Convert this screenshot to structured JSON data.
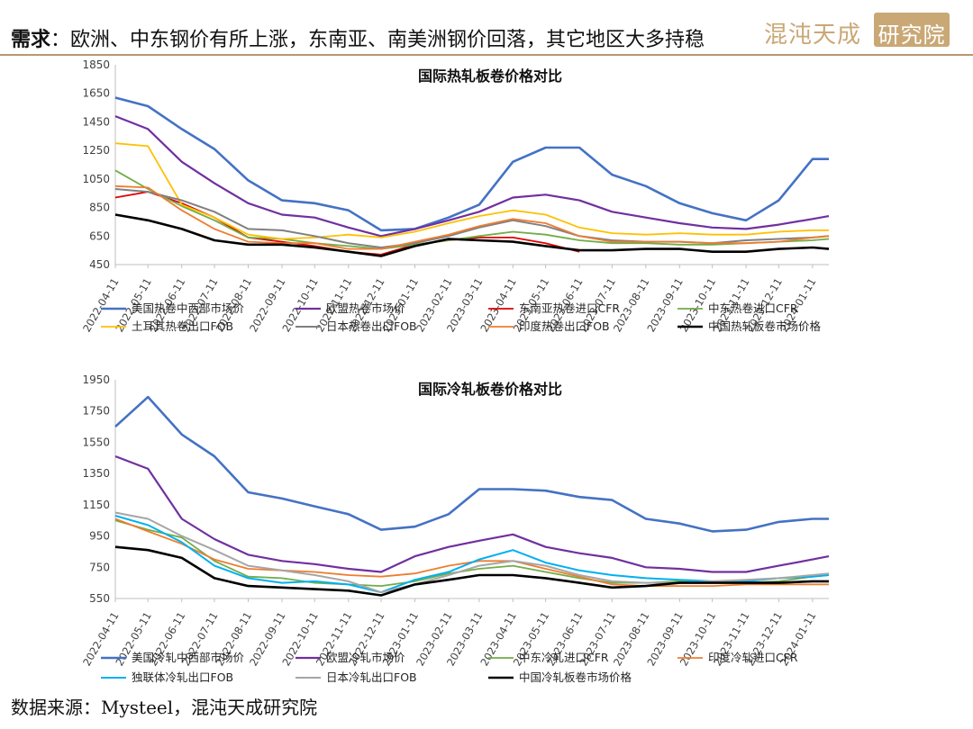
{
  "header": {
    "headline_bold": "需求",
    "headline_rest": "：欧洲、中东钢价有所上涨，东南亚、南美洲钢价回落，其它地区大多持稳",
    "logo_brush": "混沌天成",
    "logo_seal": "研究院"
  },
  "footer": {
    "source": "数据来源：Mysteel，混沌天成研究院"
  },
  "chart_data": [
    {
      "type": "line",
      "title": "国际热轧板卷价格对比",
      "ylim": [
        450,
        1850
      ],
      "yticks": [
        "450",
        "650",
        "850",
        "1050",
        "1250",
        "1450",
        "1650",
        "1850"
      ],
      "xticks": [
        "2022-04-11",
        "2022-05-11",
        "2022-06-11",
        "2022-07-11",
        "2022-08-11",
        "2022-09-11",
        "2022-10-11",
        "2022-11-11",
        "2022-12-11",
        "2023-01-11",
        "2023-02-11",
        "2023-03-11",
        "2023-04-11",
        "2023-05-11",
        "2023-06-11",
        "2023-07-11",
        "2023-08-11",
        "2023-09-11",
        "2023-10-11",
        "2023-11-11",
        "2023-12-11",
        "2024-01-11"
      ],
      "x": [
        "2022-04-11",
        "2022-05-11",
        "2022-06-11",
        "2022-07-11",
        "2022-08-11",
        "2022-09-11",
        "2022-10-11",
        "2022-11-11",
        "2022-12-11",
        "2023-01-11",
        "2023-02-11",
        "2023-03-11",
        "2023-04-11",
        "2023-05-11",
        "2023-06-11",
        "2023-07-11",
        "2023-08-11",
        "2023-09-11",
        "2023-10-11",
        "2023-11-11",
        "2023-12-11",
        "2024-01-11",
        "2024-01-26"
      ],
      "legend_position": "bottom",
      "grid": false,
      "series": [
        {
          "name": "美国热卷中西部市场价",
          "color": "#4472c4",
          "width": 2.6,
          "values": [
            1620,
            1560,
            1400,
            1260,
            1040,
            900,
            880,
            830,
            690,
            700,
            780,
            870,
            1170,
            1270,
            1270,
            1080,
            1000,
            880,
            810,
            760,
            900,
            1190,
            1190
          ]
        },
        {
          "name": "欧盟热卷市场价",
          "color": "#7030a0",
          "width": 2.2,
          "values": [
            1490,
            1400,
            1170,
            1020,
            880,
            800,
            780,
            710,
            650,
            700,
            760,
            820,
            920,
            940,
            900,
            820,
            780,
            740,
            710,
            700,
            730,
            770,
            790
          ]
        },
        {
          "name": "东南亚热卷进口CFR",
          "color": "#e00000",
          "width": 1.8,
          "values": [
            920,
            960,
            880,
            780,
            640,
            610,
            580,
            540,
            520,
            590,
            620,
            640,
            640,
            600,
            540,
            null,
            null,
            null,
            null,
            null,
            null,
            null,
            null
          ]
        },
        {
          "name": "中东热卷进口CFR",
          "color": "#70ad47",
          "width": 1.8,
          "values": [
            1110,
            980,
            860,
            760,
            640,
            630,
            600,
            580,
            560,
            590,
            620,
            650,
            680,
            660,
            620,
            600,
            600,
            590,
            590,
            600,
            610,
            620,
            630
          ]
        },
        {
          "name": "土耳其热卷出口FOB",
          "color": "#ffc000",
          "width": 1.8,
          "values": [
            1300,
            1280,
            870,
            780,
            660,
            630,
            640,
            660,
            640,
            680,
            740,
            790,
            830,
            800,
            710,
            670,
            660,
            670,
            660,
            660,
            680,
            690,
            690
          ]
        },
        {
          "name": "日本热卷出口FOB",
          "color": "#808080",
          "width": 2.0,
          "values": [
            980,
            960,
            900,
            820,
            700,
            690,
            650,
            600,
            570,
            600,
            650,
            710,
            760,
            720,
            650,
            620,
            610,
            610,
            600,
            620,
            630,
            640,
            650
          ]
        },
        {
          "name": "印度热卷出口FOB",
          "color": "#ed7d31",
          "width": 1.8,
          "values": [
            1000,
            990,
            830,
            700,
            610,
            600,
            600,
            560,
            560,
            610,
            660,
            720,
            770,
            740,
            650,
            610,
            610,
            610,
            600,
            600,
            610,
            640,
            650
          ]
        },
        {
          "name": "中国热轧板卷市场价格",
          "color": "#000000",
          "width": 2.6,
          "values": [
            800,
            760,
            700,
            620,
            590,
            590,
            570,
            540,
            510,
            580,
            630,
            620,
            610,
            580,
            550,
            550,
            560,
            560,
            540,
            540,
            560,
            570,
            560
          ]
        }
      ]
    },
    {
      "type": "line",
      "title": "国际冷轧板卷价格对比",
      "ylim": [
        550,
        1950
      ],
      "yticks": [
        "550",
        "750",
        "950",
        "1150",
        "1350",
        "1550",
        "1750",
        "1950"
      ],
      "xticks": [
        "2022-04-11",
        "2022-05-11",
        "2022-06-11",
        "2022-07-11",
        "2022-08-11",
        "2022-09-11",
        "2022-10-11",
        "2022-11-11",
        "2022-12-11",
        "2023-01-11",
        "2023-02-11",
        "2023-03-11",
        "2023-04-11",
        "2023-05-11",
        "2023-06-11",
        "2023-07-11",
        "2023-08-11",
        "2023-09-11",
        "2023-10-11",
        "2023-11-11",
        "2023-12-11",
        "2024-01-11"
      ],
      "x": [
        "2022-04-11",
        "2022-05-11",
        "2022-06-11",
        "2022-07-11",
        "2022-08-11",
        "2022-09-11",
        "2022-10-11",
        "2022-11-11",
        "2022-12-11",
        "2023-01-11",
        "2023-02-11",
        "2023-03-11",
        "2023-04-11",
        "2023-05-11",
        "2023-06-11",
        "2023-07-11",
        "2023-08-11",
        "2023-09-11",
        "2023-10-11",
        "2023-11-11",
        "2023-12-11",
        "2024-01-11",
        "2024-01-26"
      ],
      "legend_position": "bottom",
      "grid": false,
      "series": [
        {
          "name": "美国冷轧中西部市场价",
          "color": "#4472c4",
          "width": 2.6,
          "values": [
            1650,
            1840,
            1600,
            1460,
            1230,
            1190,
            1140,
            1090,
            990,
            1010,
            1090,
            1250,
            1250,
            1240,
            1200,
            1180,
            1060,
            1030,
            980,
            990,
            1040,
            1060,
            1060
          ]
        },
        {
          "name": "欧盟冷轧市场价",
          "color": "#7030a0",
          "width": 2.2,
          "values": [
            1460,
            1380,
            1060,
            930,
            830,
            790,
            770,
            740,
            720,
            820,
            880,
            920,
            960,
            880,
            840,
            810,
            750,
            740,
            720,
            720,
            760,
            800,
            820
          ]
        },
        {
          "name": "中东冷轧进口CFR",
          "color": "#70ad47",
          "width": 1.8,
          "values": [
            1050,
            990,
            940,
            790,
            690,
            680,
            650,
            640,
            630,
            660,
            710,
            740,
            760,
            720,
            680,
            650,
            650,
            660,
            650,
            650,
            660,
            690,
            700
          ]
        },
        {
          "name": "印度冷轧进口CFR",
          "color": "#ed7d31",
          "width": 1.8,
          "values": [
            1060,
            980,
            900,
            800,
            740,
            730,
            720,
            700,
            690,
            710,
            760,
            790,
            790,
            740,
            690,
            640,
            630,
            630,
            630,
            640,
            640,
            640,
            640
          ]
        },
        {
          "name": "独联体冷轧出口FOB",
          "color": "#00b0f0",
          "width": 2.0,
          "values": [
            1080,
            1020,
            910,
            760,
            680,
            650,
            660,
            640,
            590,
            670,
            720,
            800,
            860,
            780,
            730,
            700,
            680,
            670,
            660,
            660,
            680,
            690,
            700
          ]
        },
        {
          "name": "日本冷轧出口FOB",
          "color": "#a6a6a6",
          "width": 2.0,
          "values": [
            1100,
            1060,
            950,
            860,
            760,
            730,
            700,
            660,
            590,
            640,
            700,
            760,
            790,
            760,
            700,
            660,
            650,
            650,
            660,
            670,
            680,
            700,
            710
          ]
        },
        {
          "name": "中国冷轧板卷市场价格",
          "color": "#000000",
          "width": 2.6,
          "values": [
            880,
            860,
            810,
            680,
            630,
            620,
            610,
            600,
            570,
            640,
            670,
            700,
            700,
            680,
            650,
            620,
            630,
            650,
            650,
            650,
            650,
            660,
            660
          ]
        }
      ]
    }
  ]
}
